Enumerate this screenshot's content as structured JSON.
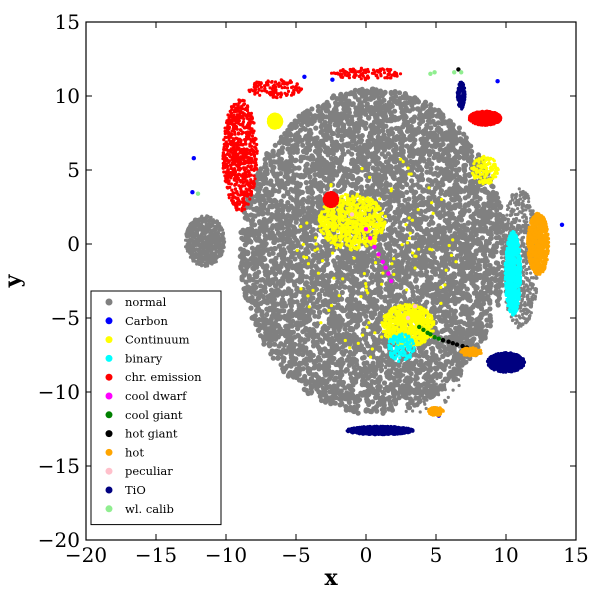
{
  "chart_data": {
    "type": "scatter",
    "title": "",
    "xlabel": "x",
    "ylabel": "y",
    "xlim": [
      -20,
      15
    ],
    "ylim": [
      -20,
      15
    ],
    "xticks": [
      "−20",
      "−15",
      "−10",
      "−5",
      "0",
      "5",
      "10",
      "15"
    ],
    "yticks": [
      "−20",
      "−15",
      "−10",
      "−5",
      "0",
      "5",
      "10",
      "15"
    ],
    "grid": false,
    "legend_position": "lower-left",
    "series": [
      {
        "name": "normal",
        "color": "#808080",
        "regions": [
          {
            "center": [
              0.5,
              -0.5
            ],
            "radius": [
              9.5,
              11
            ],
            "density": "very high"
          },
          {
            "center": [
              3.5,
              -9.0
            ],
            "radius": [
              3.5,
              2.5
            ],
            "density": "medium"
          },
          {
            "center": [
              -11.5,
              0.2
            ],
            "radius": [
              1.5,
              1.8
            ],
            "density": "high"
          },
          {
            "center": [
              11.0,
              -1.0
            ],
            "radius": [
              1.4,
              5.0
            ],
            "density": "high"
          }
        ]
      },
      {
        "name": "Carbon",
        "color": "#0000ff",
        "points": [
          [
            -12.4,
            3.5
          ],
          [
            -4.4,
            11.3
          ],
          [
            -2.4,
            11.1
          ],
          [
            14.0,
            1.3
          ],
          [
            5.2,
            -11.6
          ],
          [
            -12.3,
            5.8
          ],
          [
            9.4,
            11.0
          ]
        ]
      },
      {
        "name": "Continuum",
        "color": "#ffff00",
        "regions": [
          {
            "center": [
              -1.0,
              1.5
            ],
            "radius": [
              2.5,
              2.0
            ],
            "density": "high"
          },
          {
            "center": [
              3.0,
              -5.5
            ],
            "radius": [
              2.0,
              1.5
            ],
            "density": "high"
          },
          {
            "center": [
              -6.5,
              8.3
            ],
            "radius": [
              0.5,
              0.5
            ],
            "density": "high"
          },
          {
            "center": [
              8.5,
              5.0
            ],
            "radius": [
              1.0,
              1.0
            ],
            "density": "medium"
          },
          {
            "center": [
              1.0,
              -1.0
            ],
            "radius": [
              6.0,
              7.0
            ],
            "density": "sparse"
          }
        ]
      },
      {
        "name": "binary",
        "color": "#00ffff",
        "regions": [
          {
            "center": [
              10.5,
              -2.0
            ],
            "radius": [
              0.6,
              3.0
            ],
            "density": "high"
          },
          {
            "center": [
              2.5,
              -7.0
            ],
            "radius": [
              1.0,
              1.0
            ],
            "density": "medium"
          }
        ]
      },
      {
        "name": "chr. emission",
        "color": "#ff0000",
        "regions": [
          {
            "center": [
              -9.0,
              6.0
            ],
            "radius": [
              1.3,
              4.0
            ],
            "density": "high"
          },
          {
            "center": [
              8.5,
              8.5
            ],
            "radius": [
              1.2,
              0.5
            ],
            "density": "high"
          },
          {
            "center": [
              -2.5,
              3.0
            ],
            "radius": [
              0.5,
              0.5
            ],
            "density": "high"
          },
          {
            "center": [
              -6.5,
              10.5
            ],
            "radius": [
              2.0,
              0.7
            ],
            "density": "medium"
          },
          {
            "center": [
              0.0,
              11.5
            ],
            "radius": [
              2.5,
              0.4
            ],
            "density": "sparse"
          }
        ]
      },
      {
        "name": "cool dwarf",
        "color": "#ff00ff",
        "points": [
          [
            0.0,
            1.0
          ],
          [
            0.3,
            0.4
          ],
          [
            0.6,
            -0.2
          ],
          [
            0.9,
            -0.7
          ],
          [
            1.2,
            -1.2
          ],
          [
            1.4,
            -1.6
          ],
          [
            1.6,
            -2.0
          ],
          [
            1.8,
            -2.5
          ]
        ]
      },
      {
        "name": "cool giant",
        "color": "#008000",
        "points": [
          [
            3.8,
            -5.6
          ],
          [
            4.1,
            -5.8
          ],
          [
            4.4,
            -6.0
          ],
          [
            4.6,
            -6.1
          ],
          [
            4.9,
            -6.3
          ],
          [
            5.2,
            -6.4
          ],
          [
            5.5,
            -6.5
          ]
        ]
      },
      {
        "name": "hot giant",
        "color": "#000000",
        "points": [
          [
            5.5,
            -6.5
          ],
          [
            5.9,
            -6.6
          ],
          [
            6.2,
            -6.7
          ],
          [
            6.5,
            -6.8
          ],
          [
            6.9,
            -6.9
          ],
          [
            7.2,
            -7.0
          ],
          [
            6.6,
            11.8
          ]
        ]
      },
      {
        "name": "hot",
        "color": "#ffa500",
        "regions": [
          {
            "center": [
              12.3,
              0.0
            ],
            "radius": [
              0.8,
              2.2
            ],
            "density": "high"
          },
          {
            "center": [
              7.5,
              -7.3
            ],
            "radius": [
              0.8,
              0.3
            ],
            "density": "medium"
          },
          {
            "center": [
              5.0,
              -11.3
            ],
            "radius": [
              0.6,
              0.3
            ],
            "density": "medium"
          }
        ]
      },
      {
        "name": "peculiar",
        "color": "#ffc0cb",
        "points": [
          [
            3.0,
            -5.0
          ],
          [
            3.5,
            -4.2
          ],
          [
            -1.0,
            2.0
          ]
        ]
      },
      {
        "name": "TiO",
        "color": "#000080",
        "regions": [
          {
            "center": [
              1.0,
              -12.6
            ],
            "radius": [
              2.5,
              0.3
            ],
            "density": "high"
          },
          {
            "center": [
              10.0,
              -8.0
            ],
            "radius": [
              1.4,
              0.7
            ],
            "density": "high"
          },
          {
            "center": [
              6.8,
              10.0
            ],
            "radius": [
              0.3,
              1.0
            ],
            "density": "medium"
          }
        ]
      },
      {
        "name": "wl. calib",
        "color": "#90ee90",
        "points": [
          [
            6.3,
            11.6
          ],
          [
            6.8,
            11.6
          ],
          [
            4.6,
            11.5
          ],
          [
            4.9,
            11.6
          ],
          [
            -12.0,
            3.4
          ]
        ]
      }
    ]
  }
}
